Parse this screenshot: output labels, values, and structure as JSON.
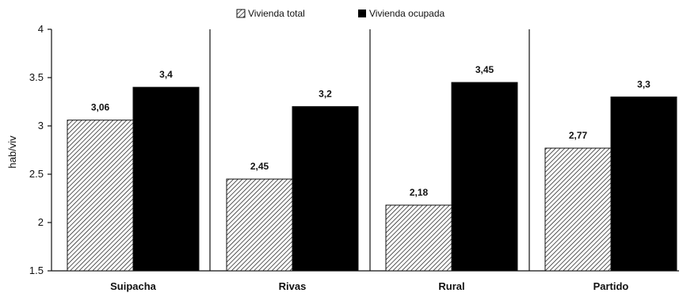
{
  "chart_data": {
    "type": "bar",
    "title": "",
    "xlabel": "",
    "ylabel": "hab/viv",
    "ylim": [
      1.5,
      4
    ],
    "yticks": [
      "1.5",
      "2",
      "2.5",
      "3",
      "3.5",
      "4"
    ],
    "ytick_values": [
      1.5,
      2,
      2.5,
      3,
      3.5,
      4
    ],
    "categories": [
      "Suipacha",
      "Rivas",
      "Rural",
      "Partido"
    ],
    "series": [
      {
        "name": "Vivienda total",
        "values": [
          3.06,
          2.45,
          2.18,
          2.77
        ],
        "labels": [
          "3,06",
          "2,45",
          "2,18",
          "2,77"
        ],
        "fill": "hatched",
        "color": "#ffffff"
      },
      {
        "name": "Vivienda ocupada",
        "values": [
          3.4,
          3.2,
          3.45,
          3.3
        ],
        "labels": [
          "3,4",
          "3,2",
          "3,45",
          "3,3"
        ],
        "fill": "solid",
        "color": "#000000"
      }
    ],
    "legend": "top-center",
    "grid": false
  }
}
